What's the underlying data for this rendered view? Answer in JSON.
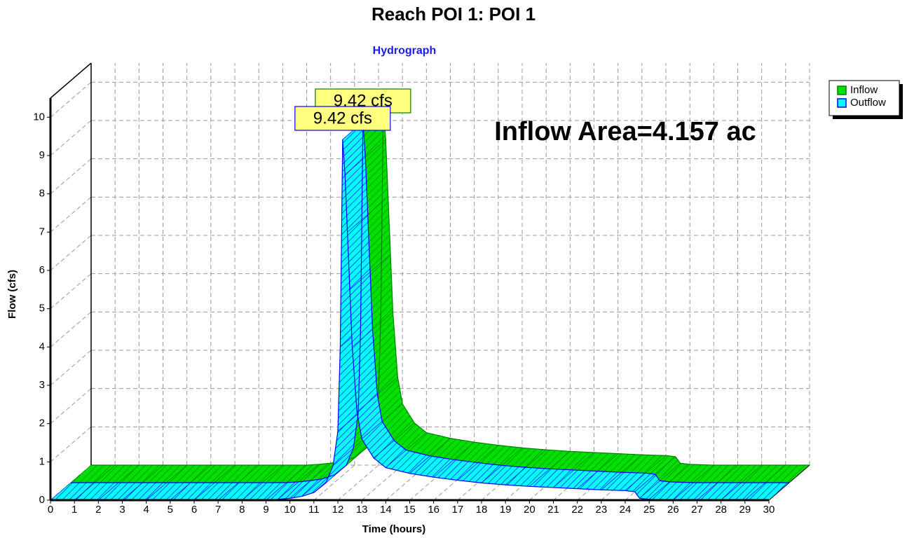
{
  "chart_data": {
    "type": "ribbon3d",
    "title": "Reach POI 1: POI 1",
    "subtitle": "Hydrograph",
    "annotation": "Inflow Area=4.157 ac",
    "xlabel": "Time (hours)",
    "ylabel": "Flow (cfs)",
    "x": [
      0,
      1,
      2,
      3,
      4,
      5,
      6,
      7,
      8,
      9,
      9.5,
      10,
      10.5,
      11,
      11.5,
      11.8,
      12,
      12.1,
      12.2,
      12.3,
      12.4,
      12.5,
      12.6,
      12.8,
      13,
      13.5,
      14,
      15,
      16,
      17,
      18,
      19,
      20,
      21,
      22,
      23,
      24,
      24.4,
      24.6,
      25,
      26,
      27,
      28,
      29,
      30
    ],
    "series": [
      {
        "name": "Inflow",
        "color": "#00e000",
        "edge": "#008000",
        "peak_label": "9.42 cfs",
        "values": [
          0,
          0,
          0,
          0,
          0,
          0,
          0,
          0,
          0,
          0,
          0.02,
          0.05,
          0.1,
          0.2,
          0.45,
          0.9,
          1.8,
          4,
          9.42,
          8.5,
          7,
          5.5,
          4,
          2.3,
          1.6,
          1.1,
          0.85,
          0.7,
          0.6,
          0.52,
          0.45,
          0.4,
          0.36,
          0.33,
          0.3,
          0.27,
          0.25,
          0.22,
          0.05,
          0.02,
          0,
          0,
          0,
          0,
          0
        ]
      },
      {
        "name": "Outflow",
        "color": "#00ffff",
        "edge": "#0000ff",
        "peak_label": "9.42 cfs",
        "values": [
          0,
          0,
          0,
          0,
          0,
          0,
          0,
          0,
          0,
          0,
          0.02,
          0.05,
          0.1,
          0.2,
          0.45,
          0.9,
          1.8,
          4,
          9.42,
          8.5,
          7,
          5.5,
          4,
          2.3,
          1.6,
          1.1,
          0.85,
          0.7,
          0.6,
          0.52,
          0.45,
          0.4,
          0.36,
          0.33,
          0.3,
          0.27,
          0.25,
          0.22,
          0.05,
          0.02,
          0,
          0,
          0,
          0,
          0
        ]
      }
    ],
    "xlim": [
      0,
      30
    ],
    "ylim": [
      0,
      10.5
    ],
    "xticks": [
      0,
      1,
      2,
      3,
      4,
      5,
      6,
      7,
      8,
      9,
      10,
      11,
      12,
      13,
      14,
      15,
      16,
      17,
      18,
      19,
      20,
      21,
      22,
      23,
      24,
      25,
      26,
      27,
      28,
      29,
      30
    ],
    "yticks": [
      0,
      1,
      2,
      3,
      4,
      5,
      6,
      7,
      8,
      9,
      10
    ],
    "grid": true,
    "legend": "upper right"
  }
}
